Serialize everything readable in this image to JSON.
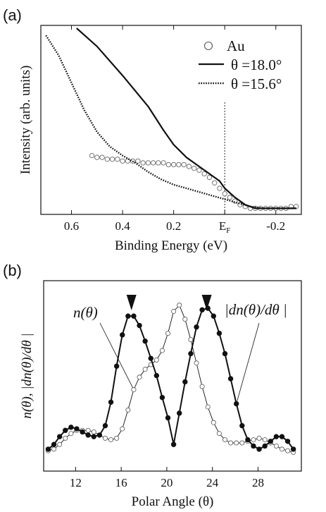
{
  "chart_data": [
    {
      "panel": "(a)",
      "type": "line",
      "xlabel": "Binding Energy (eV)",
      "ylabel": "Intensity (arb. units)",
      "xlim": [
        0.72,
        -0.3
      ],
      "x_reversed": true,
      "x_ticks": [
        "0.6",
        "0.4",
        "0.2",
        "E",
        "-0.2"
      ],
      "x_tick_values": [
        0.6,
        0.4,
        0.2,
        0.0,
        -0.2
      ],
      "fermi_label": {
        "main": "E",
        "sub": "F"
      },
      "fermi_level": 0.0,
      "ylim": [
        0,
        1
      ],
      "legend": {
        "placement": "top-right",
        "entries": [
          "Au",
          "θ =18.0°",
          "θ =15.6°"
        ]
      },
      "series": [
        {
          "name": "Au",
          "style": "open-circles",
          "x": [
            0.52,
            0.5,
            0.48,
            0.46,
            0.44,
            0.42,
            0.4,
            0.38,
            0.36,
            0.34,
            0.32,
            0.3,
            0.28,
            0.26,
            0.24,
            0.22,
            0.2,
            0.18,
            0.16,
            0.14,
            0.12,
            0.1,
            0.08,
            0.06,
            0.04,
            0.02,
            0.0,
            -0.02,
            -0.04,
            -0.06,
            -0.08,
            -0.1,
            -0.12,
            -0.14,
            -0.16,
            -0.18,
            -0.2,
            -0.22,
            -0.24,
            -0.26,
            -0.28
          ],
          "y": [
            0.3,
            0.29,
            0.29,
            0.28,
            0.28,
            0.28,
            0.27,
            0.27,
            0.27,
            0.27,
            0.26,
            0.26,
            0.26,
            0.26,
            0.26,
            0.25,
            0.25,
            0.25,
            0.25,
            0.24,
            0.23,
            0.22,
            0.2,
            0.18,
            0.15,
            0.12,
            0.09,
            0.07,
            0.05,
            0.03,
            0.02,
            0.01,
            0.01,
            0.01,
            0.01,
            0.01,
            0.01,
            0.01,
            0.01,
            0.02,
            0.02
          ]
        },
        {
          "name": "θ =18.0°",
          "style": "solid",
          "x": [
            0.58,
            0.5,
            0.4,
            0.3,
            0.24,
            0.2,
            0.15,
            0.1,
            0.06,
            0.02,
            0.0,
            -0.04,
            -0.08,
            -0.12,
            -0.16,
            -0.2,
            -0.25,
            -0.28
          ],
          "y": [
            1.0,
            0.9,
            0.74,
            0.57,
            0.44,
            0.36,
            0.29,
            0.24,
            0.2,
            0.16,
            0.12,
            0.07,
            0.03,
            0.01,
            0.01,
            0.01,
            0.01,
            0.01
          ]
        },
        {
          "name": "θ =15.6°",
          "style": "dotted",
          "x": [
            0.7,
            0.65,
            0.6,
            0.55,
            0.5,
            0.45,
            0.4,
            0.35,
            0.3,
            0.25,
            0.2,
            0.15,
            0.1,
            0.05,
            0.0,
            -0.05,
            -0.1,
            -0.15,
            -0.2,
            -0.25,
            -0.28
          ],
          "y": [
            0.96,
            0.85,
            0.7,
            0.55,
            0.43,
            0.35,
            0.3,
            0.26,
            0.21,
            0.17,
            0.14,
            0.12,
            0.1,
            0.08,
            0.06,
            0.04,
            0.02,
            0.01,
            0.01,
            0.01,
            0.01
          ]
        }
      ]
    },
    {
      "panel": "(b)",
      "type": "line",
      "xlabel": "Polar Angle (θ)",
      "ylabel": "n(θ), |dn(θ)/dθ |",
      "xlim": [
        9.2,
        31.8
      ],
      "ylim": [
        0,
        1
      ],
      "x_ticks": [
        12,
        16,
        20,
        24,
        28
      ],
      "annotations": [
        {
          "text": "n(θ)",
          "target_series": "n(θ)",
          "placement": "upper-left"
        },
        {
          "text": "|dn(θ)/dθ |",
          "target_series": "|dn(θ)/dθ |",
          "placement": "upper-right"
        },
        {
          "text": "▼",
          "x": 16.9,
          "kind": "peak-marker"
        },
        {
          "text": "▼",
          "x": 23.5,
          "kind": "peak-marker"
        }
      ],
      "series": [
        {
          "name": "n(θ)",
          "style": "open-circles-thin-line",
          "x": [
            9.6,
            10.1,
            10.6,
            11.1,
            11.6,
            12.1,
            12.6,
            13.1,
            13.6,
            14.1,
            14.6,
            15.1,
            15.6,
            16.1,
            16.6,
            17.1,
            17.6,
            18.1,
            18.6,
            19.1,
            19.6,
            20.1,
            20.6,
            21.1,
            21.6,
            22.1,
            22.6,
            23.1,
            23.6,
            24.1,
            24.6,
            25.1,
            25.6,
            26.1,
            26.6,
            27.1,
            27.6,
            28.1,
            28.6,
            29.1,
            29.6,
            30.1,
            30.6,
            31.1
          ],
          "y": [
            0.04,
            0.05,
            0.08,
            0.12,
            0.15,
            0.17,
            0.17,
            0.17,
            0.16,
            0.14,
            0.12,
            0.11,
            0.12,
            0.18,
            0.3,
            0.43,
            0.51,
            0.56,
            0.59,
            0.62,
            0.68,
            0.79,
            0.93,
            0.97,
            0.88,
            0.75,
            0.6,
            0.45,
            0.32,
            0.22,
            0.15,
            0.11,
            0.09,
            0.09,
            0.09,
            0.1,
            0.11,
            0.12,
            0.11,
            0.09,
            0.07,
            0.05,
            0.04,
            0.03
          ]
        },
        {
          "name": "|dn(θ)/dθ |",
          "style": "filled-circles-thick-line",
          "x": [
            9.6,
            10.1,
            10.6,
            11.1,
            11.6,
            12.1,
            12.6,
            13.1,
            13.6,
            14.1,
            14.6,
            15.1,
            15.6,
            16.1,
            16.6,
            17.1,
            17.6,
            18.1,
            18.6,
            19.1,
            19.6,
            20.1,
            20.6,
            21.1,
            21.6,
            22.1,
            22.6,
            23.1,
            23.6,
            24.1,
            24.6,
            25.1,
            25.6,
            26.1,
            26.6,
            27.1,
            27.6,
            28.1,
            28.6,
            29.1,
            29.6,
            30.1,
            30.6,
            31.1
          ],
          "y": [
            0.05,
            0.08,
            0.13,
            0.17,
            0.19,
            0.18,
            0.16,
            0.14,
            0.13,
            0.14,
            0.2,
            0.35,
            0.58,
            0.78,
            0.9,
            0.9,
            0.84,
            0.74,
            0.63,
            0.52,
            0.38,
            0.25,
            0.08,
            0.28,
            0.48,
            0.66,
            0.83,
            0.94,
            0.95,
            0.9,
            0.79,
            0.66,
            0.5,
            0.34,
            0.2,
            0.11,
            0.07,
            0.05,
            0.07,
            0.1,
            0.13,
            0.13,
            0.1,
            0.05
          ]
        }
      ]
    }
  ]
}
